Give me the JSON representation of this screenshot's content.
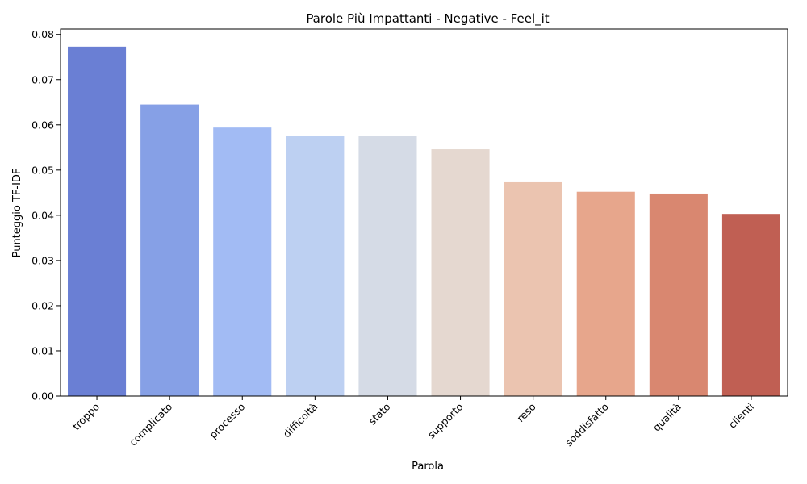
{
  "chart_data": {
    "type": "bar",
    "title": "Parole Più Impattanti - Negative - Feel_it",
    "xlabel": "Parola",
    "ylabel": "Punteggio TF-IDF",
    "categories": [
      "troppo",
      "complicato",
      "processo",
      "difficoltà",
      "stato",
      "supporto",
      "reso",
      "soddisfatto",
      "qualità",
      "clienti"
    ],
    "values": [
      0.0773,
      0.0645,
      0.0594,
      0.0575,
      0.0575,
      0.0546,
      0.0473,
      0.0452,
      0.0448,
      0.0403
    ],
    "colors": [
      "#6a7fd4",
      "#86a0e6",
      "#a2bbf4",
      "#bdd0f2",
      "#d5dbe6",
      "#e5d8d0",
      "#ebc4b0",
      "#e7a68c",
      "#d98770",
      "#c05f53"
    ],
    "ylim": [
      0,
      0.0812
    ],
    "yticks": [
      0.0,
      0.01,
      0.02,
      0.03,
      0.04,
      0.05,
      0.06,
      0.07,
      0.08
    ],
    "ytick_labels": [
      "0.00",
      "0.01",
      "0.02",
      "0.03",
      "0.04",
      "0.05",
      "0.06",
      "0.07",
      "0.08"
    ],
    "grid": false,
    "legend": "none"
  }
}
